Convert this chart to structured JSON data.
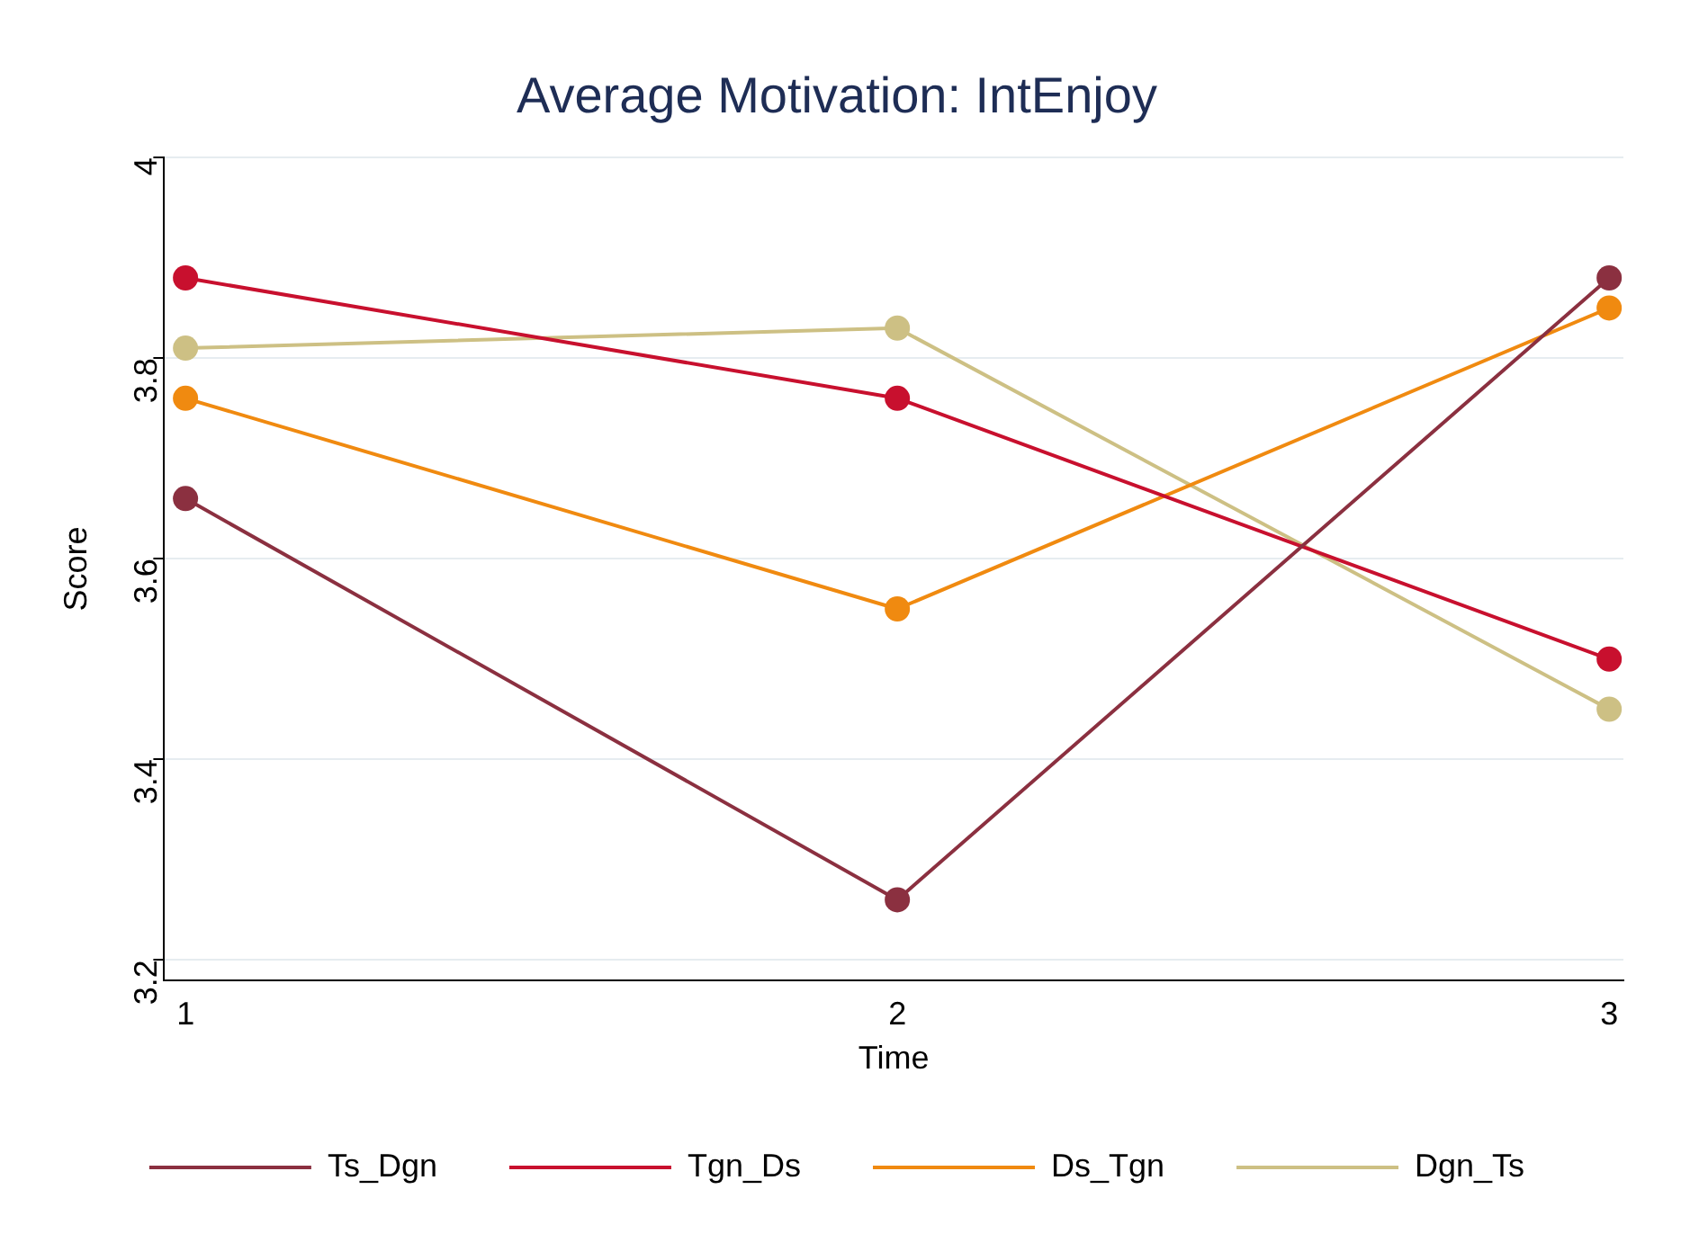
{
  "chart_data": {
    "type": "line",
    "title": "Average Motivation: IntEnjoy",
    "xlabel": "Time",
    "ylabel": "Score",
    "x": [
      1,
      2,
      3
    ],
    "xlim": [
      0.97,
      3.02
    ],
    "xticks": [
      1,
      2,
      3
    ],
    "ylim": [
      3.18,
      4
    ],
    "yticks": [
      3.2,
      3.4,
      3.6,
      3.8,
      4
    ],
    "series": [
      {
        "name": "Ts_Dgn",
        "color": "#8b3040",
        "values": [
          3.66,
          3.26,
          3.88
        ]
      },
      {
        "name": "Tgn_Ds",
        "color": "#c8102e",
        "values": [
          3.88,
          3.76,
          3.5
        ]
      },
      {
        "name": "Ds_Tgn",
        "color": "#f08a10",
        "values": [
          3.76,
          3.55,
          3.85
        ]
      },
      {
        "name": "Dgn_Ts",
        "color": "#cdc084",
        "values": [
          3.81,
          3.83,
          3.45
        ]
      }
    ],
    "grid": "y",
    "legend": "bottom",
    "marker": "circle",
    "line_style": "solid"
  }
}
